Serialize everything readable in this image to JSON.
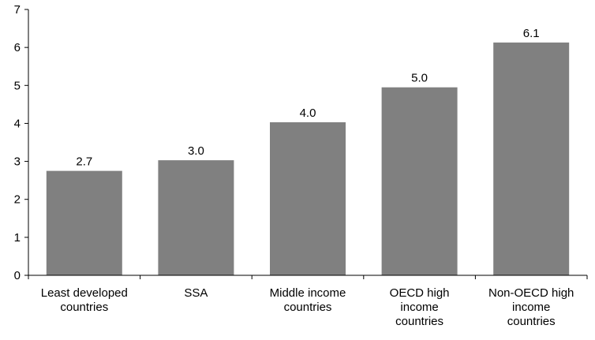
{
  "chart_data": {
    "type": "bar",
    "categories": [
      [
        "Least developed",
        "countries"
      ],
      [
        "SSA"
      ],
      [
        "Middle income",
        "countries"
      ],
      [
        "OECD high",
        "income",
        "countries"
      ],
      [
        "Non-OECD high",
        "income",
        "countries"
      ]
    ],
    "values": [
      2.75,
      3.03,
      4.03,
      4.95,
      6.13
    ],
    "data_labels": [
      "2.7",
      "3.0",
      "4.0",
      "5.0",
      "6.1"
    ],
    "y_ticks": [
      "0",
      "1",
      "2",
      "3",
      "4",
      "5",
      "6",
      "7"
    ],
    "ylim": [
      0,
      7
    ],
    "grid": false,
    "legend": "none",
    "title": "",
    "xlabel": "",
    "ylabel": "",
    "bar_color": "#808080",
    "axis_color": "#000000"
  }
}
